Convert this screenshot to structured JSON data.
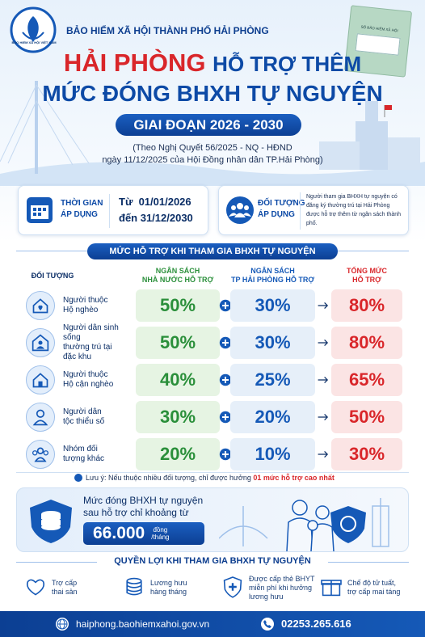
{
  "header": {
    "org": "BẢO HIỂM XÃ HỘI THÀNH PHỐ HẢI PHÒNG",
    "logo_text": "BẢO HIỂM XÃ HỘI VIỆT NAM",
    "book_label": "SỔ BẢO HIỂM XÃ HỘI",
    "title": {
      "highlight": "HẢI PHÒNG",
      "rest": "HỖ TRỢ THÊM",
      "line2": "MỨC ĐÓNG BHXH TỰ NGUYỆN"
    },
    "period": "GIAI ĐOẠN 2026 - 2030",
    "basis": [
      "(Theo Nghị Quyết 56/2025 - NQ - HĐND",
      "ngày 11/12/2025 của Hội Đồng nhân dân TP.Hải Phòng)"
    ]
  },
  "info": {
    "time": {
      "label": [
        "THỜI GIAN",
        "ÁP DỤNG"
      ],
      "from": "Từ  01/01/2026",
      "to": "đến 31/12/2030"
    },
    "subject": {
      "label": [
        "ĐỐI TƯỢNG",
        "ÁP DỤNG"
      ],
      "text": "Người tham gia BHXH tự nguyện có đăng ký thường trú tại Hải Phòng được hỗ trợ thêm từ ngân sách thành phố."
    }
  },
  "table": {
    "heading": "MỨC HỖ TRỢ KHI THAM GIA BHXH TỰ NGUYỆN",
    "columns": {
      "subject": [
        "ĐỐI TƯỢNG"
      ],
      "state": [
        "NGÂN SÁCH",
        "NHÀ NƯỚC HỖ TRỢ"
      ],
      "city": [
        "NGÂN SÁCH",
        "TP HẢI PHÒNG HỖ TRỢ"
      ],
      "total": [
        "TỔNG MỨC",
        "HỖ TRỢ"
      ]
    },
    "rows": [
      {
        "label": [
          "Người thuộc",
          "Hộ nghèo"
        ],
        "state": "50%",
        "city": "30%",
        "total": "80%"
      },
      {
        "label": [
          "Người dân sinh sống",
          "thường trú tại",
          "đặc khu"
        ],
        "state": "50%",
        "city": "30%",
        "total": "80%"
      },
      {
        "label": [
          "Người thuộc",
          "Hộ cận nghèo"
        ],
        "state": "40%",
        "city": "25%",
        "total": "65%"
      },
      {
        "label": [
          "Người dân",
          "tộc thiểu số"
        ],
        "state": "30%",
        "city": "20%",
        "total": "50%"
      },
      {
        "label": [
          "Nhóm đối",
          "tượng khác"
        ],
        "state": "20%",
        "city": "10%",
        "total": "30%"
      }
    ],
    "note": {
      "text": "Lưu ý: Nếu thuộc nhiều đối tượng, chỉ được hưởng ",
      "emphasis": "01 mức hỗ trợ cao nhất"
    }
  },
  "contribution": {
    "lines": [
      "Mức đóng BHXH tự nguyện",
      "sau hỗ trợ chỉ khoảng từ"
    ],
    "amount": "66.000",
    "unit": [
      "đồng",
      "/tháng"
    ]
  },
  "benefits": {
    "heading": "QUYỀN LỢI KHI THAM GIA BHXH TỰ NGUYỆN",
    "items": [
      [
        "Trợ cấp",
        "thai sản"
      ],
      [
        "Lương hưu",
        "hàng tháng"
      ],
      [
        "Được cấp thẻ BHYT",
        "miễn phí khi hưởng",
        "lương hưu"
      ],
      [
        "Chế độ tử tuất,",
        "trợ cấp mai táng"
      ]
    ]
  },
  "footer": {
    "website": "haiphong.baohiemxahoi.gov.vn",
    "phone": "02253.265.616"
  }
}
